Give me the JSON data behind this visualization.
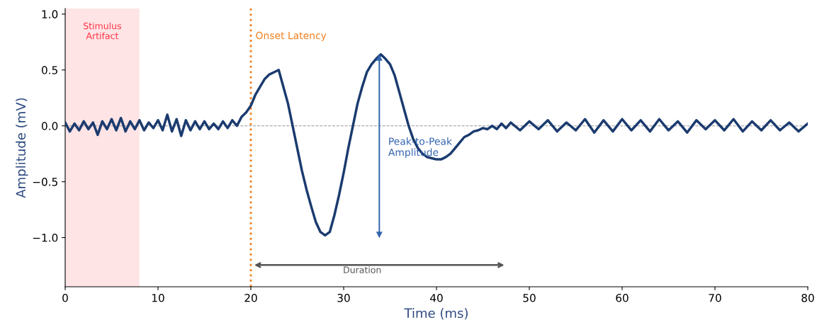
{
  "chart_data": {
    "type": "line",
    "xlabel": "Time (ms)",
    "ylabel": "Amplitude (mV)",
    "xlim": [
      0,
      80
    ],
    "ylim": [
      -1.44,
      1.05
    ],
    "xticks": [
      0,
      10,
      20,
      30,
      40,
      50,
      60,
      70,
      80
    ],
    "yticks": [
      {
        "value": -1,
        "label": "−1.0"
      },
      -0.5,
      {
        "value": 0,
        "label": "0.0"
      },
      0.5,
      {
        "value": 1,
        "label": "1.0"
      }
    ],
    "grid": false,
    "legend": false,
    "series": [
      {
        "color": "#1b3b6f",
        "x": [
          0,
          0.5,
          1,
          1.5,
          2,
          2.5,
          3,
          3.5,
          4,
          4.5,
          5,
          5.5,
          6,
          6.5,
          7,
          7.5,
          8,
          8.5,
          9,
          9.5,
          10,
          10.5,
          11,
          11.5,
          12,
          12.5,
          13,
          13.5,
          14,
          14.5,
          15,
          15.5,
          16,
          16.5,
          17,
          17.5,
          18,
          18.5,
          19,
          19.5,
          20,
          20.5,
          21,
          21.5,
          22,
          22.5,
          23,
          23.5,
          24,
          24.5,
          25,
          25.5,
          26,
          26.5,
          27,
          27.5,
          28,
          28.5,
          29,
          29.5,
          30,
          30.5,
          31,
          31.5,
          32,
          32.5,
          33,
          33.5,
          34,
          34.5,
          35,
          35.5,
          36,
          36.5,
          37,
          37.5,
          38,
          38.5,
          39,
          39.5,
          40,
          40.5,
          41,
          41.5,
          42,
          42.5,
          43,
          43.5,
          44,
          44.5,
          45,
          45.5,
          46,
          46.5,
          47,
          47.5,
          48,
          49,
          50,
          51,
          52,
          53,
          54,
          55,
          56,
          57,
          58,
          59,
          60,
          61,
          62,
          63,
          64,
          65,
          66,
          67,
          68,
          69,
          70,
          71,
          72,
          73,
          74,
          75,
          76,
          77,
          78,
          79,
          80
        ],
        "values": [
          0.03,
          -0.05,
          0.02,
          -0.04,
          0.04,
          -0.03,
          0.03,
          -0.08,
          0.04,
          -0.03,
          0.06,
          -0.04,
          0.07,
          -0.05,
          0.04,
          -0.03,
          0.05,
          -0.04,
          0.03,
          -0.02,
          0.05,
          -0.04,
          0.1,
          -0.05,
          0.06,
          -0.09,
          0.05,
          -0.04,
          0.04,
          -0.03,
          0.04,
          -0.03,
          0.02,
          -0.03,
          0.04,
          -0.02,
          0.05,
          0.0,
          0.08,
          0.12,
          0.18,
          0.28,
          0.35,
          0.42,
          0.46,
          0.48,
          0.5,
          0.35,
          0.2,
          0.0,
          -0.2,
          -0.4,
          -0.57,
          -0.72,
          -0.86,
          -0.95,
          -0.98,
          -0.95,
          -0.8,
          -0.62,
          -0.42,
          -0.2,
          0.0,
          0.2,
          0.35,
          0.48,
          0.55,
          0.6,
          0.64,
          0.6,
          0.55,
          0.45,
          0.3,
          0.15,
          0.0,
          -0.12,
          -0.2,
          -0.25,
          -0.28,
          -0.29,
          -0.3,
          -0.3,
          -0.28,
          -0.25,
          -0.2,
          -0.15,
          -0.1,
          -0.08,
          -0.05,
          -0.04,
          -0.02,
          -0.03,
          0.0,
          -0.03,
          0.02,
          -0.02,
          0.03,
          -0.04,
          0.04,
          -0.03,
          0.05,
          -0.05,
          0.03,
          -0.04,
          0.06,
          -0.06,
          0.05,
          -0.05,
          0.06,
          -0.04,
          0.05,
          -0.05,
          0.06,
          -0.04,
          0.04,
          -0.06,
          0.05,
          -0.03,
          0.05,
          -0.04,
          0.06,
          -0.05,
          0.04,
          -0.04,
          0.05,
          -0.04,
          0.03,
          -0.05,
          0.02
        ]
      }
    ],
    "ref_lines": [
      {
        "axis": "x",
        "value": 20,
        "label": "Onset Latency",
        "color": "#f07f1e",
        "line_style": "dotted"
      },
      {
        "axis": "y",
        "value": 0,
        "label": null,
        "color": "#999999",
        "line_style": "dashed"
      }
    ],
    "bands": [
      {
        "axis": "x",
        "from": 0,
        "to": 8,
        "label": "Stimulus\nArtifact",
        "color": "#ffe4e6"
      }
    ],
    "annotations": [
      "Peak-to-Peak\nAmplitude",
      "Duration"
    ]
  }
}
